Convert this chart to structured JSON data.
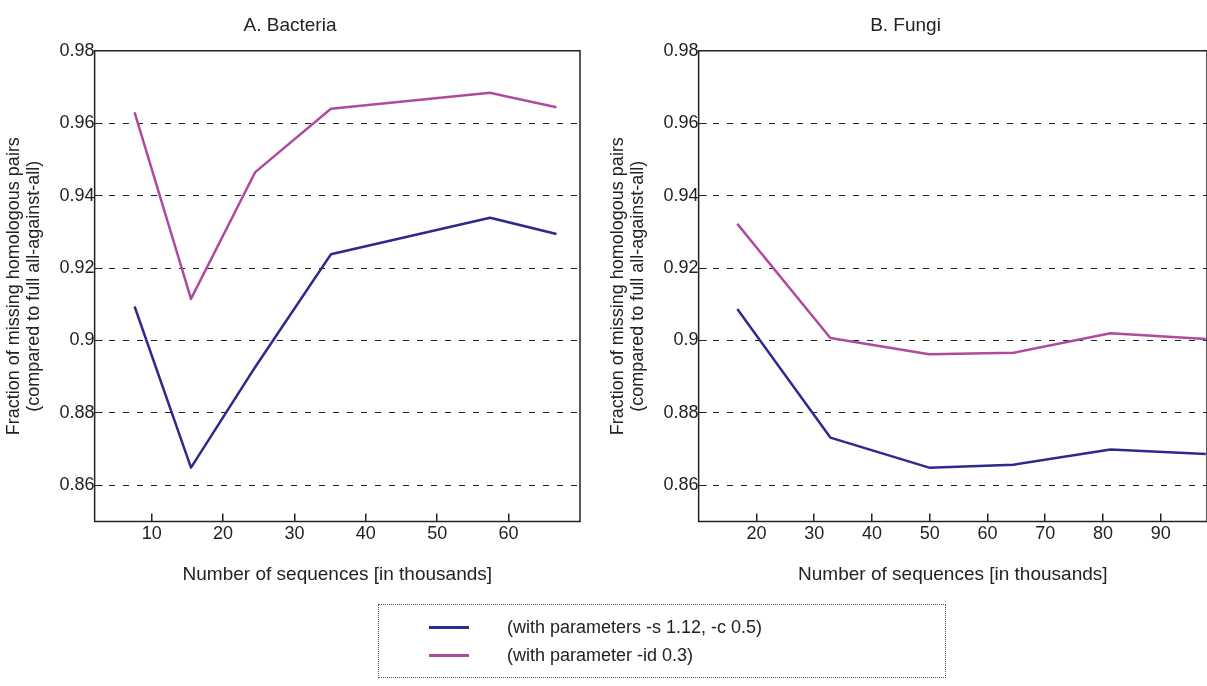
{
  "chart_data": [
    {
      "type": "line",
      "title": "A. Bacteria",
      "xlabel": "Number of sequences [in thousands]",
      "ylabel": "Fraction of missing homologous pairs\n(compared to full all-against-all)",
      "xlim": [
        2,
        70
      ],
      "xticks": [
        10,
        20,
        30,
        40,
        50,
        60
      ],
      "ylim": [
        0.85,
        0.98
      ],
      "yticks": [
        0.86,
        0.88,
        0.9,
        0.92,
        0.94,
        0.96,
        0.98
      ],
      "grid": "y",
      "marker": "none",
      "line_style": "solid",
      "legend": "bottom",
      "x": [
        7.6,
        15.5,
        24.5,
        35.1,
        57.4,
        66.7
      ],
      "series": [
        {
          "name": "(with parameters -s 1.12, -c 0.5)",
          "color": "#2e2a8c",
          "values": [
            0.9094,
            0.8649,
            0.8927,
            0.9238,
            0.9339,
            0.9294
          ]
        },
        {
          "name": "(with parameter -id 0.3)",
          "color": "#b04a9e",
          "values": [
            0.963,
            0.9115,
            0.9465,
            0.964,
            0.9684,
            0.9644
          ]
        }
      ]
    },
    {
      "type": "line",
      "title": "B. Fungi",
      "xlabel": "Number of sequences [in thousands]",
      "ylabel": "Fraction of missing homologous pairs\n(compared to full all-against-all)",
      "xlim": [
        10,
        98
      ],
      "xticks": [
        20,
        30,
        40,
        50,
        60,
        70,
        80,
        90
      ],
      "ylim": [
        0.85,
        0.98
      ],
      "yticks": [
        0.86,
        0.88,
        0.9,
        0.92,
        0.94,
        0.96,
        0.98
      ],
      "grid": "y",
      "marker": "none",
      "line_style": "solid",
      "x": [
        16.7,
        32.8,
        49.9,
        64.5,
        81.3,
        97.8
      ],
      "series": [
        {
          "name": "(with parameters -s 1.12, -c 0.5)",
          "color": "#2e2a8c",
          "values": [
            0.9087,
            0.8732,
            0.8649,
            0.8657,
            0.8699,
            0.8687
          ]
        },
        {
          "name": "(with parameter -id 0.3)",
          "color": "#b04a9e",
          "values": [
            0.9322,
            0.9007,
            0.8962,
            0.8966,
            0.902,
            0.9004
          ]
        }
      ]
    }
  ]
}
